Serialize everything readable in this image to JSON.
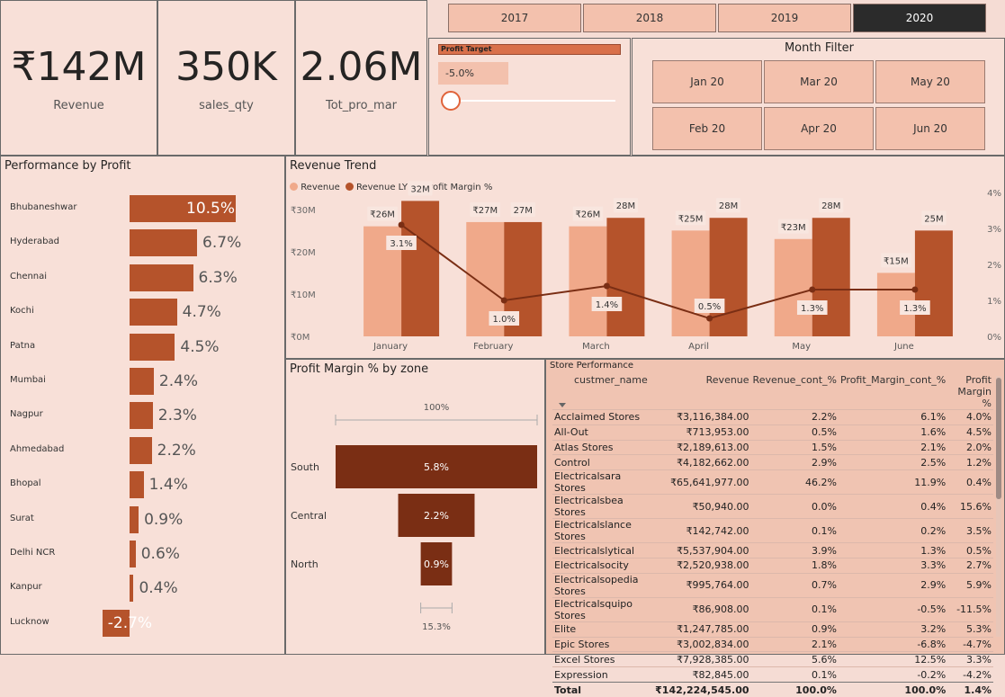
{
  "kpis": [
    {
      "value": "₹142M",
      "label": "Revenue"
    },
    {
      "value": "350K",
      "label": "sales_qty"
    },
    {
      "value": "2.06M",
      "label": "Tot_pro_mar"
    }
  ],
  "years": [
    "2017",
    "2018",
    "2019",
    "2020"
  ],
  "selected_year": "2020",
  "profit_target": {
    "title": "Profit Target",
    "value": "-5.0%"
  },
  "month_filter": {
    "title": "Month Filter",
    "months": [
      "Jan 20",
      "Mar 20",
      "May 20",
      "Feb 20",
      "Apr 20",
      "Jun 20"
    ]
  },
  "performance": {
    "title": "Performance by Profit",
    "cities": [
      "Bhubaneshwar",
      "Hyderabad",
      "Chennai",
      "Kochi",
      "Patna",
      "Mumbai",
      "Nagpur",
      "Ahmedabad",
      "Bhopal",
      "Surat",
      "Delhi NCR",
      "Kanpur",
      "Lucknow"
    ],
    "values": [
      10.5,
      6.7,
      6.3,
      4.7,
      4.5,
      2.4,
      2.3,
      2.2,
      1.4,
      0.9,
      0.6,
      0.4,
      -2.7
    ],
    "labels": [
      "10.5%",
      "6.7%",
      "6.3%",
      "4.7%",
      "4.5%",
      "2.4%",
      "2.3%",
      "2.2%",
      "1.4%",
      "0.9%",
      "0.6%",
      "0.4%",
      "-2.7%"
    ]
  },
  "chart_data": {
    "type": "bar",
    "title": "Revenue Trend",
    "categories": [
      "January",
      "February",
      "March",
      "April",
      "May",
      "June"
    ],
    "series": [
      {
        "name": "Revenue",
        "values": [
          26,
          27,
          26,
          25,
          23,
          15
        ],
        "labels": [
          "₹26M",
          "₹27M",
          "₹26M",
          "₹25M",
          "₹23M",
          "₹15M"
        ],
        "color": "#f0a98a"
      },
      {
        "name": "Revenue LY",
        "values": [
          32,
          27,
          28,
          28,
          28,
          25
        ],
        "labels": [
          "32M",
          "27M",
          "28M",
          "28M",
          "28M",
          "25M"
        ],
        "color": "#b5532b"
      },
      {
        "name": "Profit Margin %",
        "values": [
          3.1,
          1.0,
          1.4,
          0.5,
          1.3,
          1.3
        ],
        "labels": [
          "3.1%",
          "1.0%",
          "1.4%",
          "0.5%",
          "1.3%",
          "1.3%"
        ],
        "color": "#7a2e14"
      }
    ],
    "y_ticks": [
      "₹0M",
      "₹10M",
      "₹20M",
      "₹30M"
    ],
    "y2_ticks": [
      "0%",
      "1%",
      "2%",
      "3%",
      "4%"
    ],
    "ylim": [
      0,
      34
    ],
    "y2lim": [
      0,
      4
    ]
  },
  "zone": {
    "title": "Profit Margin % by zone",
    "top_label": "100%",
    "bottom_label": "15.3%",
    "zones": [
      "South",
      "Central",
      "North"
    ],
    "values": [
      5.8,
      2.2,
      0.9
    ],
    "labels": [
      "5.8%",
      "2.2%",
      "0.9%"
    ]
  },
  "store": {
    "title": "Store Performance",
    "headers": [
      "custmer_name",
      "Revenue",
      "Revenue_cont_%",
      "Profit_Margin_cont_%",
      "Profit Margin %"
    ],
    "rows": [
      [
        "Acclaimed Stores",
        "₹3,116,384.00",
        "2.2%",
        "6.1%",
        "4.0%"
      ],
      [
        "All-Out",
        "₹713,953.00",
        "0.5%",
        "1.6%",
        "4.5%"
      ],
      [
        "Atlas Stores",
        "₹2,189,613.00",
        "1.5%",
        "2.1%",
        "2.0%"
      ],
      [
        "Control",
        "₹4,182,662.00",
        "2.9%",
        "2.5%",
        "1.2%"
      ],
      [
        "Electricalsara Stores",
        "₹65,641,977.00",
        "46.2%",
        "11.9%",
        "0.4%"
      ],
      [
        "Electricalsbea Stores",
        "₹50,940.00",
        "0.0%",
        "0.4%",
        "15.6%"
      ],
      [
        "Electricalslance Stores",
        "₹142,742.00",
        "0.1%",
        "0.2%",
        "3.5%"
      ],
      [
        "Electricalslytical",
        "₹5,537,904.00",
        "3.9%",
        "1.3%",
        "0.5%"
      ],
      [
        "Electricalsocity",
        "₹2,520,938.00",
        "1.8%",
        "3.3%",
        "2.7%"
      ],
      [
        "Electricalsopedia Stores",
        "₹995,764.00",
        "0.7%",
        "2.9%",
        "5.9%"
      ],
      [
        "Electricalsquipo Stores",
        "₹86,908.00",
        "0.1%",
        "-0.5%",
        "-11.5%"
      ],
      [
        "Elite",
        "₹1,247,785.00",
        "0.9%",
        "3.2%",
        "5.3%"
      ],
      [
        "Epic Stores",
        "₹3,002,834.00",
        "2.1%",
        "-6.8%",
        "-4.7%"
      ],
      [
        "Excel Stores",
        "₹7,928,385.00",
        "5.6%",
        "12.5%",
        "3.3%"
      ],
      [
        "Expression",
        "₹82,845.00",
        "0.1%",
        "-0.2%",
        "-4.2%"
      ]
    ],
    "total": [
      "Total",
      "₹142,224,545.00",
      "100.0%",
      "100.0%",
      "1.4%"
    ]
  }
}
